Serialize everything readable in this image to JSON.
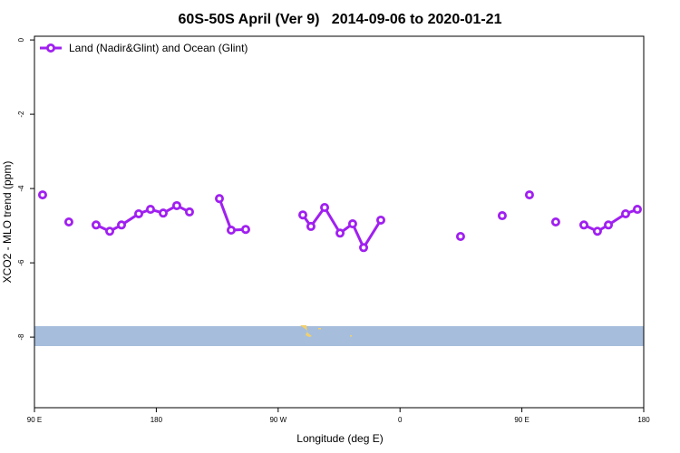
{
  "chart_data": {
    "type": "line",
    "title": "60S-50S April (Ver 9)   2014-09-06 to 2020-01-21",
    "xlabel": "Longitude (deg E)",
    "ylabel": "XCO2 - MLO trend (ppm)",
    "x": [
      96,
      106,
      115.4,
      125,
      135.5,
      145.6,
      154.3,
      167,
      175.7,
      185.1,
      195.1,
      204.5,
      215,
      226.6,
      235.3,
      246,
      265,
      288.2,
      294.2,
      304.3,
      315.7,
      325,
      333.1,
      345.8,
      380,
      404.7,
      420,
      435.5,
      445,
      455.6,
      465,
      475,
      485,
      495.8,
      505.8,
      513.9,
      526.6,
      535.3
    ],
    "series": [
      {
        "name": "Land (Nadir&Glint) and Ocean (Glint)",
        "color": "#a020f0",
        "values": [
          -4.17,
          null,
          -4.9,
          null,
          -4.98,
          -5.15,
          -4.98,
          -4.68,
          -4.56,
          -4.66,
          -4.46,
          -4.63,
          null,
          -4.27,
          -5.12,
          -5.1,
          null,
          -4.71,
          -5.02,
          -4.51,
          -5.2,
          -4.95,
          -5.59,
          -4.85,
          null,
          -5.29,
          null,
          -4.73,
          null,
          -4.17,
          null,
          -4.9,
          null,
          -4.98,
          -5.15,
          -4.98,
          -4.68,
          -4.56
        ]
      }
    ],
    "xlim": [
      90,
      540
    ],
    "xticks": [
      {
        "value": 90,
        "label": "90 E"
      },
      180,
      {
        "value": 270,
        "label": "90 W"
      },
      {
        "value": 360,
        "label": "0"
      },
      {
        "value": 450,
        "label": "90 E"
      },
      {
        "value": 540,
        "label": "180"
      }
    ],
    "ylim": [
      -9.9,
      0.1
    ],
    "yticks": [
      0,
      -2,
      -4,
      -6,
      -8
    ],
    "legend": "top-left"
  }
}
